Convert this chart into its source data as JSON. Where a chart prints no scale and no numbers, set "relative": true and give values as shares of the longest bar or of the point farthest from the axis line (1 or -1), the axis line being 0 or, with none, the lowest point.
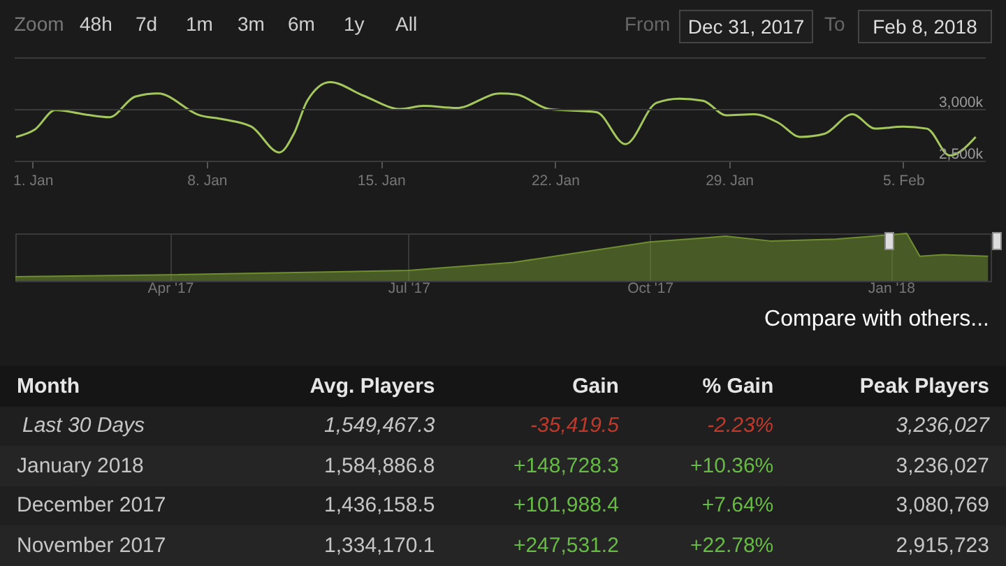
{
  "chart_data": [
    {
      "type": "line",
      "annotations": [
        "Zoom",
        "48h",
        "7d",
        "1m",
        "3m",
        "6m",
        "1y",
        "All",
        "From",
        "Dec 31, 2017",
        "To",
        "Feb 8, 2018"
      ],
      "x": [
        "2017-12-31T08:00",
        "2018-01-01T02:00",
        "2018-01-01T22:00",
        "2018-01-03T01:00",
        "2018-01-04T02:00",
        "2018-01-05T03:00",
        "2018-01-06T01:00",
        "2018-01-07T17:00",
        "2018-01-08T16:00",
        "2018-01-09T19:00",
        "2018-01-10T22:00",
        "2018-01-11T12:00",
        "2018-01-12T01:00",
        "2018-01-12T23:00",
        "2018-01-14T07:00",
        "2018-01-15T19:00",
        "2018-01-16T17:00",
        "2018-01-18T01:00",
        "2018-01-19T19:00",
        "2018-01-20T11:00",
        "2018-01-21T18:00",
        "2018-01-23T16:00",
        "2018-01-24T20:00",
        "2018-01-26T02:00",
        "2018-01-27T00:00",
        "2018-01-27T23:00",
        "2018-01-28T21:00",
        "2018-01-30T00:00",
        "2018-01-30T23:00",
        "2018-01-31T21:00",
        "2018-02-01T20:00",
        "2018-02-02T23:00",
        "2018-02-03T21:00",
        "2018-02-05T00:00",
        "2018-02-05T23:00",
        "2018-02-06T21:00",
        "2018-02-07T22:00"
      ],
      "series": [
        {
          "color": "#a4c75d",
          "values": [
            2730,
            2800,
            2990,
            2950,
            2920,
            3120,
            3150,
            2940,
            2900,
            2830,
            2580,
            2760,
            3080,
            3260,
            3130,
            3000,
            3030,
            3010,
            3150,
            3140,
            3000,
            2970,
            2660,
            3060,
            3100,
            3080,
            2940,
            2950,
            2870,
            2730,
            2760,
            2950,
            2810,
            2830,
            2810,
            2550,
            2730
          ]
        }
      ],
      "xlim": [
        "2017-12-31T06:00",
        "2018-02-08T07:00"
      ],
      "xticks": [
        {
          "value": "2018-01-01",
          "label": "1. Jan"
        },
        {
          "value": "2018-01-08",
          "label": "8. Jan"
        },
        {
          "value": "2018-01-15",
          "label": "15. Jan"
        },
        {
          "value": "2018-01-22",
          "label": "22. Jan"
        },
        {
          "value": "2018-01-29",
          "label": "29. Jan"
        },
        {
          "value": "2018-02-05",
          "label": "5. Feb"
        }
      ],
      "ylim": [
        2500,
        3500
      ],
      "yticks": [
        {
          "value": 2500,
          "label": "2,500k"
        },
        {
          "value": 3000,
          "label": "3,000k"
        },
        {
          "value": 3500,
          "label": null
        }
      ],
      "grid": "y"
    },
    {
      "type": "area",
      "relative": true,
      "annotations": [
        "Compare with others..."
      ],
      "x": [
        "2017-02-01",
        "2017-04-01",
        "2017-07-01",
        "2017-08-10",
        "2017-10-01",
        "2017-10-30",
        "2017-11-16",
        "2017-12-11",
        "2018-01-01",
        "2018-01-07",
        "2018-01-12",
        "2018-01-21",
        "2018-02-07"
      ],
      "series": [
        {
          "color": "#6e8e30",
          "values": [
            0.09,
            0.13,
            0.22,
            0.39,
            0.82,
            0.94,
            0.84,
            0.88,
            0.97,
            1,
            0.52,
            0.55,
            0.52
          ]
        }
      ],
      "xlim": [
        "2017-02-01",
        "2018-02-08"
      ],
      "xticks": [
        {
          "value": "2017-04-01",
          "label": "Apr '17"
        },
        {
          "value": "2017-07-01",
          "label": "Jul '17"
        },
        {
          "value": "2017-10-01",
          "label": "Oct '17"
        },
        {
          "value": "2018-01-01",
          "label": "Jan '18"
        }
      ],
      "grid": "x"
    },
    {
      "type": "other",
      "annotations": [
        "Month",
        "Avg. Players",
        "Gain",
        "% Gain",
        "Peak Players",
        "Last 30 Days",
        "1,549,467.3",
        "-35,419.5",
        "-2.23%",
        "3,236,027",
        "January 2018",
        "1,584,886.8",
        "+148,728.3",
        "+10.36%",
        "3,236,027",
        "December 2017",
        "1,436,158.5",
        "+101,988.4",
        "+7.64%",
        "3,080,769",
        "November 2017",
        "1,334,170.1",
        "+247,531.2",
        "+22.78%",
        "2,915,723"
      ],
      "colors": [
        "#e6e6e6",
        "#e6e6e6",
        "#e6e6e6",
        "#e6e6e6",
        "#e6e6e6",
        "#c6c6c6",
        "#c6c6c6",
        "#c0392b",
        "#c0392b",
        "#c6c6c6",
        "#c6c6c6",
        "#c6c6c6",
        "#66bb44",
        "#66bb44",
        "#c6c6c6",
        "#c6c6c6",
        "#c6c6c6",
        "#66bb44",
        "#66bb44",
        "#c6c6c6",
        "#c6c6c6",
        "#c6c6c6",
        "#66bb44",
        "#66bb44",
        "#c6c6c6"
      ]
    }
  ]
}
